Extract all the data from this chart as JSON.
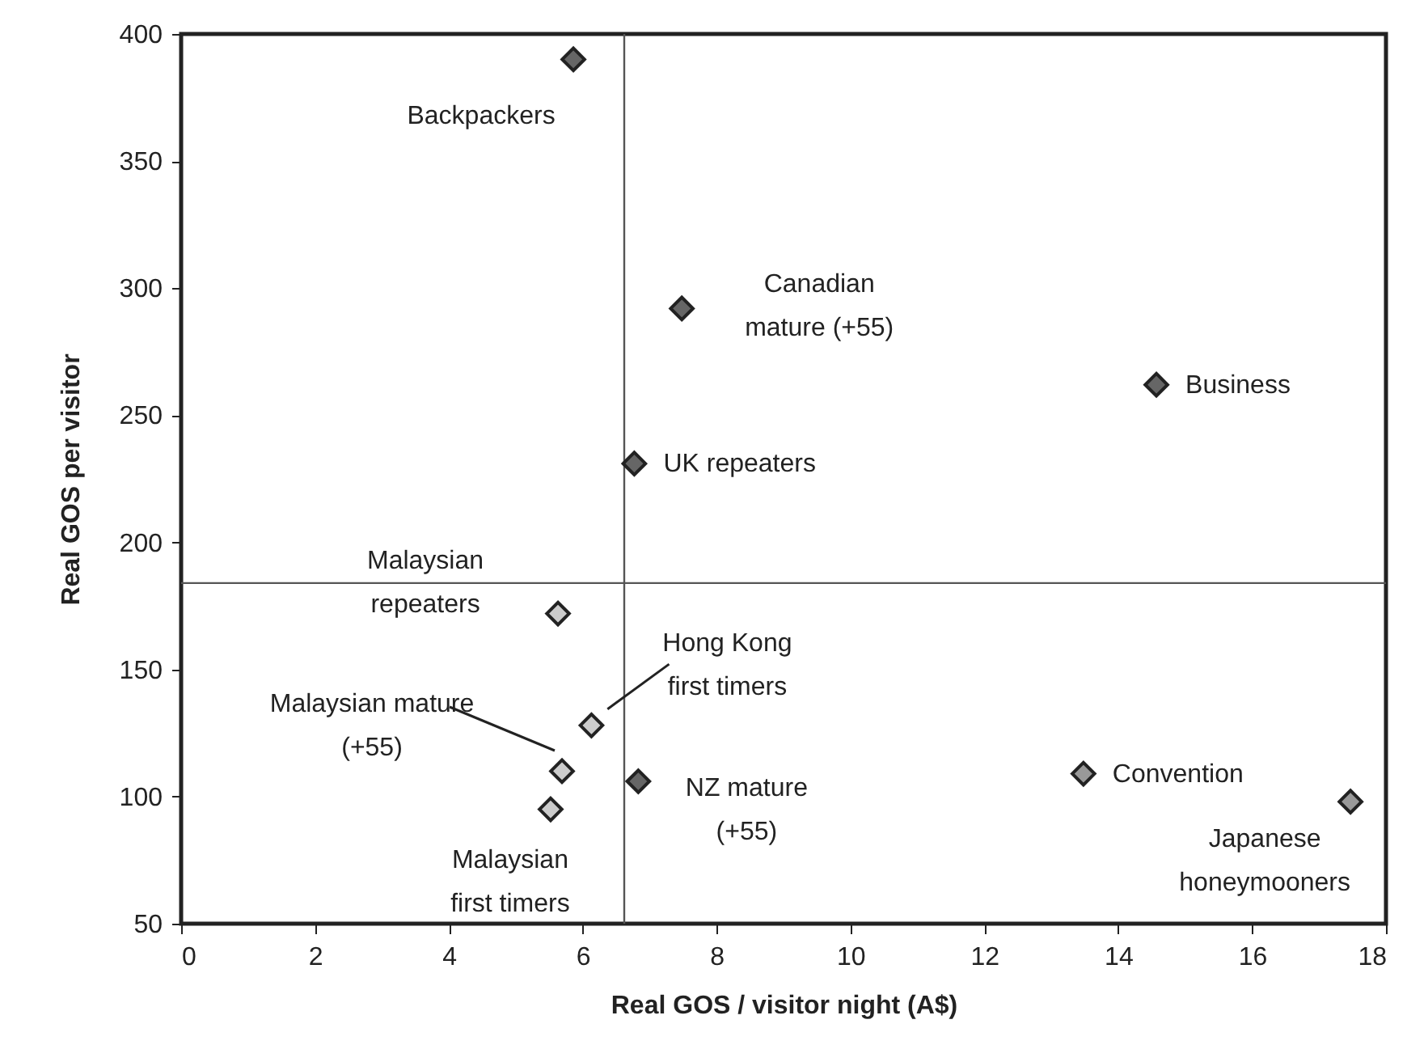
{
  "chart_data": {
    "type": "scatter",
    "xlabel": "Real GOS / visitor night (A$)",
    "ylabel": "Real GOS per visitor",
    "xlim": [
      0,
      18
    ],
    "xticks": [
      0,
      2,
      4,
      6,
      8,
      10,
      12,
      14,
      16,
      18
    ],
    "ylim": [
      50,
      400
    ],
    "yticks": [
      50,
      100,
      150,
      200,
      250,
      300,
      350,
      400
    ],
    "grid": false,
    "marker": "diamond",
    "series": [
      {
        "color": "#666666",
        "x": [
          5.86,
          7.48,
          6.77,
          14.57,
          6.83
        ],
        "values": [
          390,
          292,
          231,
          262,
          106
        ]
      },
      {
        "color": "#999999",
        "x": [
          13.48,
          17.47
        ],
        "values": [
          109,
          98
        ]
      },
      {
        "color": "#cccccc",
        "x": [
          5.63,
          6.13,
          5.69,
          5.52
        ],
        "values": [
          172,
          128,
          110,
          95
        ]
      }
    ],
    "ref_lines": [
      {
        "axis": "x",
        "value": 6.62
      },
      {
        "axis": "y",
        "value": 184
      }
    ],
    "annotations": [
      {
        "text": "Backpackers",
        "x": 5.86,
        "y": 390
      },
      {
        "text": "Canadian\nmature (+55)",
        "x": 7.48,
        "y": 292
      },
      {
        "text": "Business",
        "x": 14.57,
        "y": 262
      },
      {
        "text": "UK repeaters",
        "x": 6.77,
        "y": 231
      },
      {
        "text": "Malaysian\nrepeaters",
        "x": 5.63,
        "y": 172
      },
      {
        "text": "Hong Kong\nfirst timers",
        "x": 6.13,
        "y": 128
      },
      "Malaysian mature\n(+55)",
      {
        "text": "NZ mature\n(+55)",
        "x": 6.83,
        "y": 106
      },
      {
        "text": "Malaysian\nfirst timers",
        "x": 5.52,
        "y": 95
      },
      {
        "text": "Convention",
        "x": 13.48,
        "y": 109
      },
      {
        "text": "Japanese\nhoneymooners",
        "x": 17.47,
        "y": 98
      }
    ]
  }
}
